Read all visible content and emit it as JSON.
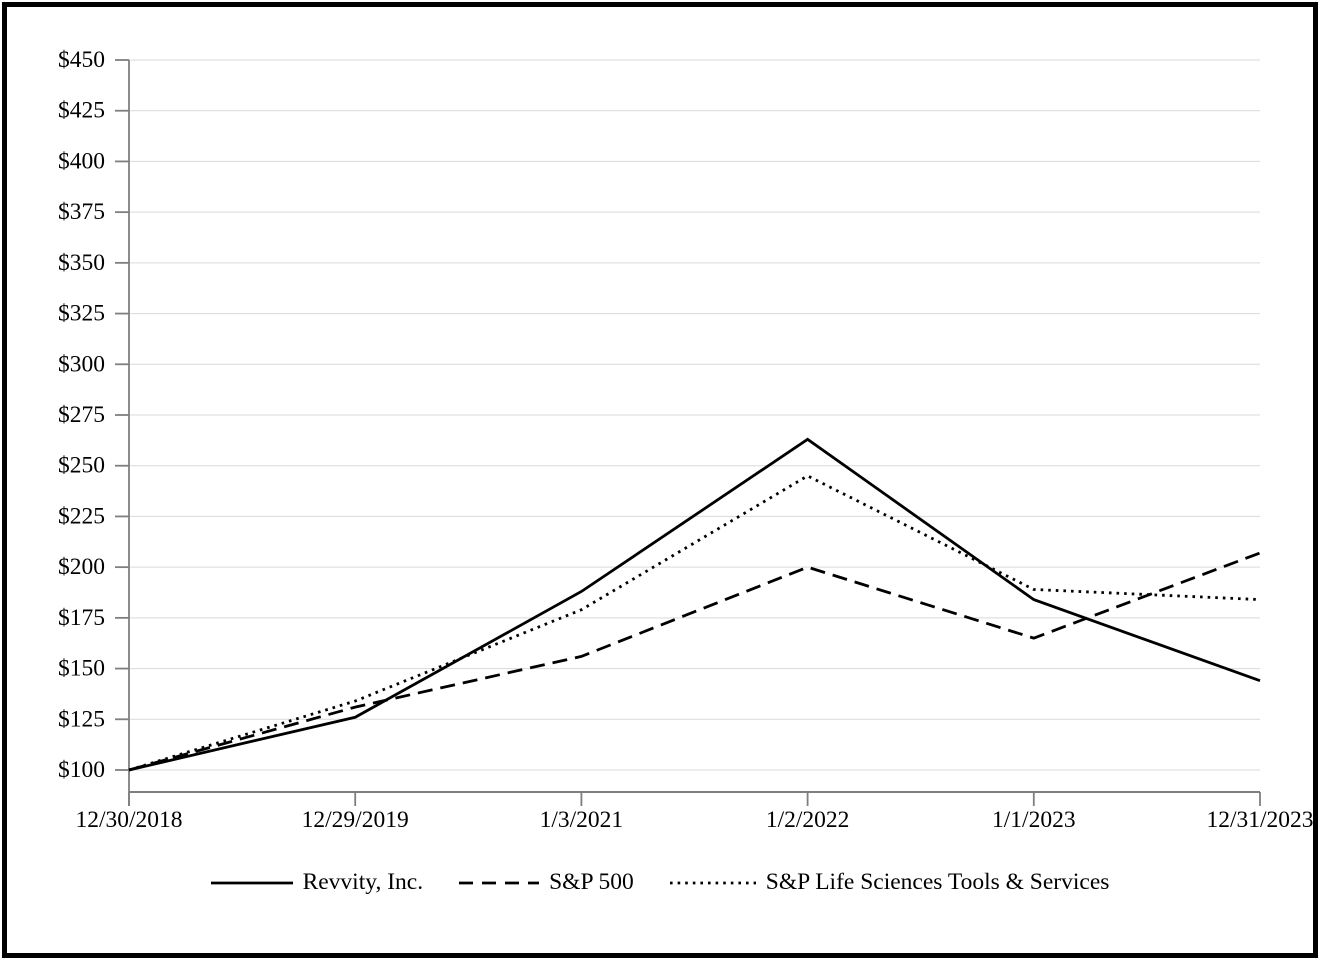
{
  "chart_data": {
    "type": "line",
    "title": "",
    "xlabel": "",
    "ylabel": "",
    "categories": [
      "12/30/2018",
      "12/29/2019",
      "1/3/2021",
      "1/2/2022",
      "1/1/2023",
      "12/31/2023"
    ],
    "series": [
      {
        "name": "Revvity, Inc.",
        "line_style": "solid",
        "color": "#000000",
        "values": [
          100,
          126,
          188,
          263,
          184,
          144
        ]
      },
      {
        "name": "S&P 500",
        "line_style": "dashed",
        "color": "#000000",
        "values": [
          100,
          131,
          156,
          200,
          165,
          207
        ]
      },
      {
        "name": "S&P Life Sciences Tools & Services",
        "line_style": "dotted",
        "color": "#000000",
        "values": [
          100,
          134,
          179,
          245,
          189,
          184
        ]
      }
    ],
    "ylim": [
      100,
      450
    ],
    "y_step": 25,
    "y_tick_labels": [
      "$100",
      "$125",
      "$150",
      "$175",
      "$200",
      "$225",
      "$250",
      "$275",
      "$300",
      "$325",
      "$350",
      "$375",
      "$400",
      "$425",
      "$450"
    ],
    "grid": "horizontal",
    "legend_position": "bottom",
    "colors": {
      "line": "#000000",
      "axis": "#7f7f7f",
      "gridline": "#d9d9d9",
      "text": "#000000",
      "background": "#ffffff",
      "page_border": "#000000"
    }
  }
}
